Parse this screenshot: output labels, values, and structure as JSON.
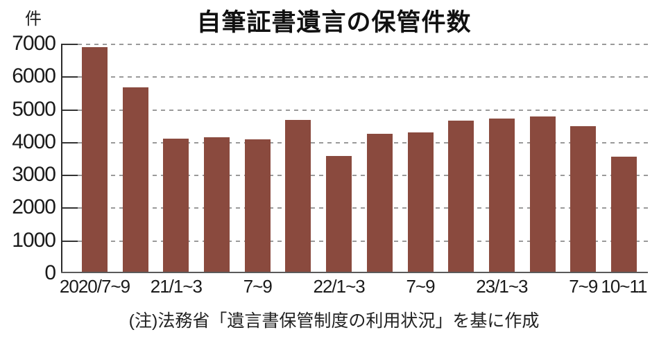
{
  "title": "自筆証書遺言の保管件数",
  "unit_label": "件",
  "note": "(注)法務省「遺言書保管制度の利用状況」を基に作成",
  "colors": {
    "bar": "#8A4A3E",
    "grid": "#9A9A9A",
    "axis": "#2A2A2A",
    "baseline": "#5A5A5A",
    "text": "#1A1A1A"
  },
  "chart_data": {
    "type": "bar",
    "title": "自筆証書遺言の保管件数",
    "ylabel": "件",
    "ylim": [
      0,
      7000
    ],
    "yticks": [
      0,
      1000,
      2000,
      3000,
      4000,
      5000,
      6000,
      7000
    ],
    "grid": "horizontal-dashed",
    "legend": "none",
    "bars": [
      {
        "label": "2020/7~9",
        "value": 6900
      },
      {
        "label": "",
        "value": 5650
      },
      {
        "label": "21/1~3",
        "value": 4080
      },
      {
        "label": "",
        "value": 4120
      },
      {
        "label": "7~9",
        "value": 4070
      },
      {
        "label": "",
        "value": 4670
      },
      {
        "label": "22/1~3",
        "value": 3550
      },
      {
        "label": "",
        "value": 4240
      },
      {
        "label": "7~9",
        "value": 4280
      },
      {
        "label": "",
        "value": 4640
      },
      {
        "label": "23/1~3",
        "value": 4710
      },
      {
        "label": "",
        "value": 4760
      },
      {
        "label": "7~9",
        "value": 4470
      },
      {
        "label": "10~11",
        "value": 3540
      }
    ]
  }
}
